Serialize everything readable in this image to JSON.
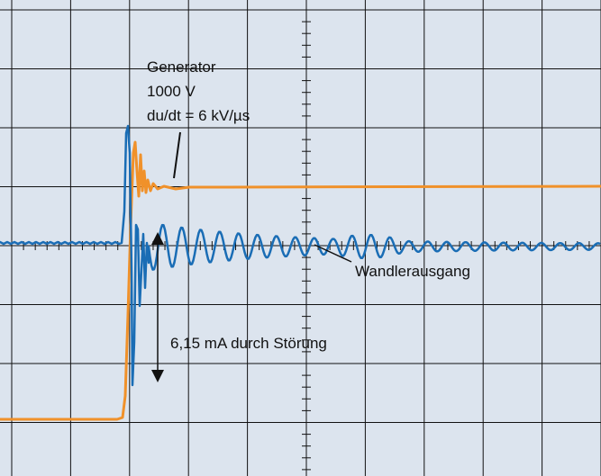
{
  "chart_data": {
    "type": "line",
    "title": "",
    "xlabel": "",
    "ylabel": "",
    "grid": true,
    "divisions": {
      "x": 10,
      "y": 8
    },
    "series": [
      {
        "name": "Generator",
        "color": "#f0912a"
      },
      {
        "name": "Wandlerausgang",
        "color": "#1a6db5"
      }
    ]
  },
  "annotations": {
    "generator_lines": [
      "Generator",
      "1000 V",
      "du/dt = 6 kV/µs"
    ],
    "wandler_label": "Wandlerausgang",
    "stoerung_label": "6,15 mA durch Störung"
  }
}
